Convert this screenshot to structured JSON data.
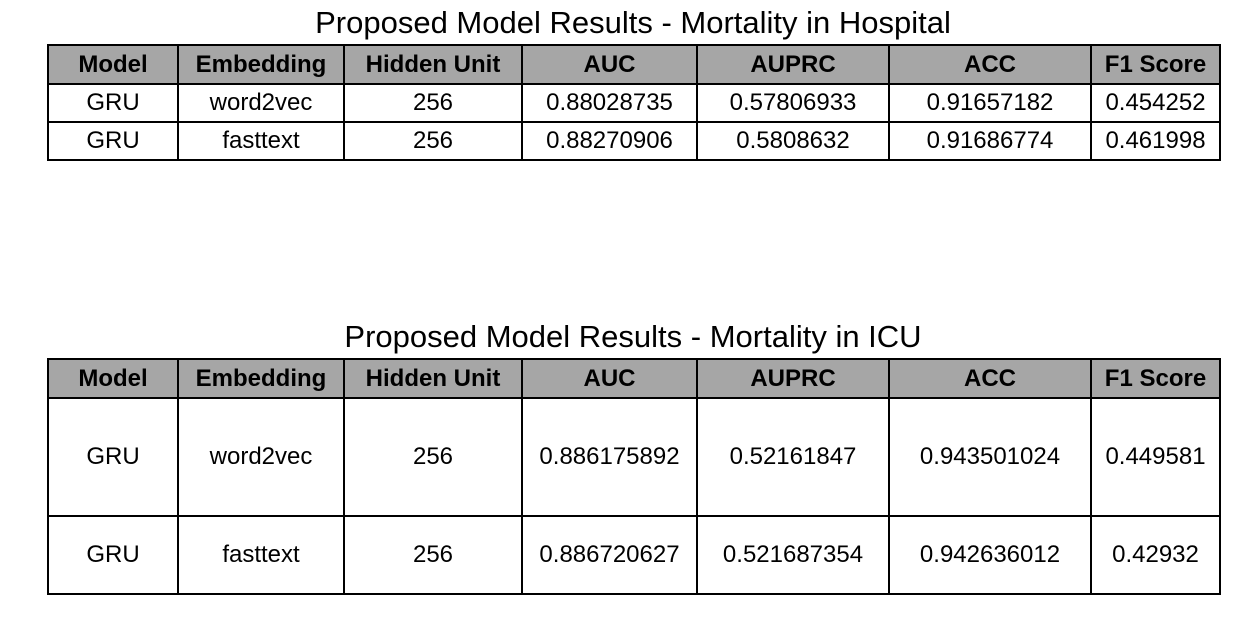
{
  "hospital": {
    "title": "Proposed Model Results - Mortality in Hospital",
    "columns": [
      "Model",
      "Embedding",
      "Hidden Unit",
      "AUC",
      "AUPRC",
      "ACC",
      "F1 Score"
    ],
    "rows": [
      [
        "GRU",
        "word2vec",
        "256",
        "0.88028735",
        "0.57806933",
        "0.91657182",
        "0.454252"
      ],
      [
        "GRU",
        "fasttext",
        "256",
        "0.88270906",
        "0.5808632",
        "0.91686774",
        "0.461998"
      ]
    ]
  },
  "icu": {
    "title": "Proposed Model Results - Mortality in ICU",
    "columns": [
      "Model",
      "Embedding",
      "Hidden Unit",
      "AUC",
      "AUPRC",
      "ACC",
      "F1 Score"
    ],
    "rows": [
      [
        "GRU",
        "word2vec",
        "256",
        "0.886175892",
        "0.52161847",
        "0.943501024",
        "0.449581"
      ],
      [
        "GRU",
        "fasttext",
        "256",
        "0.886720627",
        "0.521687354",
        "0.942636012",
        "0.42932"
      ]
    ]
  }
}
